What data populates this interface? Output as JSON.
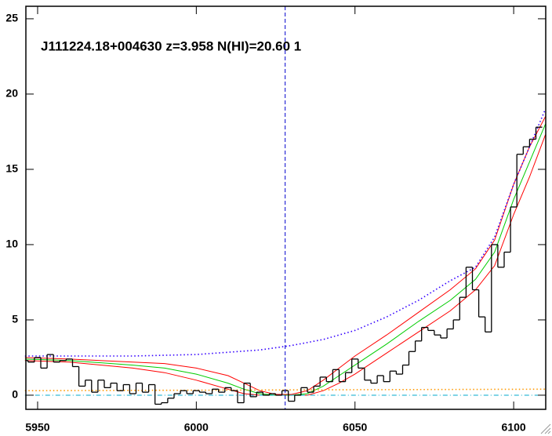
{
  "chart_data": {
    "type": "step",
    "title": "J111224.18+004630 z=3.958 N(HI)=20.60 1",
    "xlim": [
      5946.3,
      6110.1
    ],
    "ylim": [
      -0.94,
      25.83
    ],
    "xticks": [
      5950,
      6000,
      6050,
      6100
    ],
    "yticks": [
      0,
      5,
      10,
      15,
      20,
      25
    ],
    "vline": 6028,
    "vline_color": "#0000cc",
    "flux": {
      "color": "#000000",
      "x": [
        5946,
        5948,
        5950,
        5952,
        5954,
        5956,
        5958,
        5960,
        5962,
        5964,
        5966,
        5968,
        5970,
        5972,
        5974,
        5976,
        5978,
        5980,
        5982,
        5984,
        5986,
        5988,
        5990,
        5992,
        5994,
        5996,
        5998,
        6000,
        6002,
        6004,
        6006,
        6008,
        6010,
        6012,
        6014,
        6016,
        6018,
        6020,
        6022,
        6024,
        6026,
        6028,
        6030,
        6032,
        6034,
        6036,
        6038,
        6040,
        6042,
        6044,
        6046,
        6048,
        6050,
        6052,
        6054,
        6056,
        6058,
        6060,
        6062,
        6064,
        6066,
        6068,
        6070,
        6072,
        6074,
        6076,
        6078,
        6080,
        6082,
        6084,
        6086,
        6088,
        6090,
        6092,
        6094,
        6096,
        6098,
        6100,
        6102,
        6104,
        6106,
        6108
      ],
      "values": [
        2.3,
        2.2,
        2.5,
        1.8,
        2.7,
        2.2,
        2.3,
        2.4,
        1.9,
        0.6,
        1.0,
        0.2,
        1.0,
        0.5,
        0.8,
        0.3,
        0.7,
        0.1,
        0.8,
        0.2,
        0.7,
        -0.6,
        -0.5,
        -0.2,
        0.1,
        0.3,
        0.1,
        0.3,
        0.2,
        0.1,
        0.4,
        0.2,
        0.5,
        0.3,
        -0.5,
        0.8,
        -0.1,
        0.2,
        0.0,
        0.1,
        0.0,
        0.3,
        -0.4,
        0.0,
        0.5,
        0.2,
        0.6,
        1.2,
        0.9,
        1.7,
        0.9,
        1.5,
        2.4,
        1.8,
        1.0,
        0.8,
        1.3,
        0.9,
        1.6,
        1.4,
        2.0,
        2.9,
        3.6,
        4.5,
        4.3,
        4.0,
        3.8,
        4.4,
        5.0,
        6.5,
        8.5,
        7.0,
        5.2,
        4.2,
        10.0,
        8.5,
        9.5,
        12.5,
        16.0,
        16.5,
        17.0,
        17.8
      ]
    },
    "series": [
      {
        "color": "#ff0000",
        "style": "solid",
        "x": [
          5946,
          5960,
          5980,
          5990,
          6000,
          6010,
          6015,
          6020,
          6025,
          6030,
          6035,
          6040,
          6045,
          6050,
          6060,
          6070,
          6080,
          6088,
          6094,
          6100,
          6105,
          6110
        ],
        "values": [
          2.5,
          2.4,
          2.2,
          2.1,
          1.8,
          1.3,
          0.8,
          0.3,
          0.05,
          0.05,
          0.3,
          1.0,
          1.8,
          2.6,
          4.0,
          5.5,
          7.0,
          8.4,
          10.3,
          14.0,
          16.5,
          18.5
        ]
      },
      {
        "color": "#ff0000",
        "style": "solid",
        "x": [
          5946,
          5960,
          5980,
          5990,
          6000,
          6010,
          6015,
          6020,
          6025,
          6030,
          6035,
          6040,
          6045,
          6050,
          6060,
          6070,
          6080,
          6088,
          6094,
          6100,
          6105,
          6110
        ],
        "values": [
          2.3,
          2.2,
          1.8,
          1.5,
          1.0,
          0.4,
          0.1,
          0.0,
          0.0,
          0.0,
          0.0,
          0.3,
          0.8,
          1.4,
          2.8,
          4.2,
          5.6,
          7.0,
          8.6,
          12.0,
          14.5,
          17.3
        ]
      },
      {
        "color": "#00cc00",
        "style": "solid",
        "x": [
          5946,
          5960,
          5980,
          5990,
          6000,
          6010,
          6015,
          6020,
          6025,
          6030,
          6035,
          6040,
          6045,
          6050,
          6060,
          6070,
          6080,
          6088,
          6094,
          6100,
          6105,
          6110
        ],
        "values": [
          2.4,
          2.3,
          2.0,
          1.8,
          1.4,
          0.8,
          0.4,
          0.1,
          0.0,
          0.0,
          0.1,
          0.6,
          1.3,
          2.0,
          3.4,
          4.9,
          6.3,
          7.7,
          9.5,
          13.0,
          15.5,
          18.0
        ]
      },
      {
        "color": "#3300ff",
        "style": "dotted",
        "x": [
          5946,
          5980,
          6000,
          6020,
          6030,
          6040,
          6050,
          6060,
          6070,
          6080,
          6088,
          6094,
          6100,
          6105,
          6110
        ],
        "values": [
          2.6,
          2.6,
          2.7,
          3.0,
          3.3,
          3.7,
          4.3,
          5.2,
          6.3,
          7.6,
          8.5,
          10.5,
          14.0,
          16.5,
          19.0
        ]
      },
      {
        "color": "#ff9900",
        "style": "dotted",
        "x": [
          5946,
          6110
        ],
        "values": [
          0.3,
          0.4
        ]
      },
      {
        "color": "#00aacc",
        "style": "dashdot",
        "x": [
          5946,
          6110
        ],
        "values": [
          0,
          0
        ]
      }
    ]
  }
}
